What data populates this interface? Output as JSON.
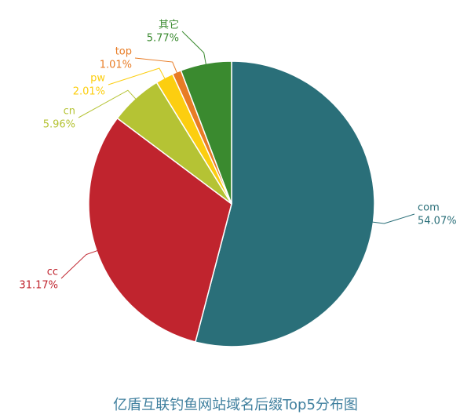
{
  "chart_data": {
    "type": "pie",
    "title": "亿盾互联钓鱼网站域名后缀Top5分布图",
    "categories": [
      "com",
      "cc",
      "cn",
      "pw",
      "top",
      "其它"
    ],
    "values": [
      54.07,
      31.17,
      5.96,
      2.01,
      1.01,
      5.77
    ],
    "value_labels": [
      "54.07%",
      "31.17%",
      "5.96%",
      "2.01%",
      "1.01%",
      "5.77%"
    ],
    "colors": [
      "#2a6f79",
      "#c0242e",
      "#b5c334",
      "#fcce10",
      "#e87c25",
      "#3a8a2f"
    ]
  }
}
